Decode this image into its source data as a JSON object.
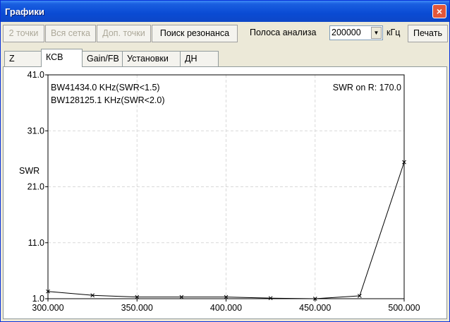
{
  "window": {
    "title": "Графики",
    "close_label": "×"
  },
  "toolbar": {
    "btn_2points": "2 точки",
    "btn_allgrid": "Вся сетка",
    "btn_extra": "Доп. точки",
    "btn_resonance": "Поиск резонанса",
    "bandwidth_label": "Полоса анализа",
    "bandwidth_value": "200000",
    "unit_label": "кГц",
    "print_label": "Печать"
  },
  "tabs": [
    {
      "label": "Z"
    },
    {
      "label": "КСВ"
    },
    {
      "label": "Gain/FB"
    },
    {
      "label": "Установки"
    },
    {
      "label": "ДН"
    }
  ],
  "chart_data": {
    "type": "line",
    "ylabel": "SWR",
    "xlabel": "",
    "xlim": [
      300,
      500
    ],
    "ylim": [
      1,
      41
    ],
    "x_ticks": [
      "300.000",
      "350.000",
      "400.000",
      "450.000",
      "500.000"
    ],
    "y_ticks": [
      "1.0",
      "11.0",
      "21.0",
      "31.0",
      "41.0"
    ],
    "annotations": [
      "BW41434.0 KHz(SWR<1.5)",
      "BW128125.1 KHz(SWR<2.0)"
    ],
    "note": "SWR on R: 170.0",
    "series": [
      {
        "x": [
          300,
          325,
          350,
          375,
          400,
          425,
          450,
          475,
          500
        ],
        "y": [
          2.3,
          1.6,
          1.3,
          1.3,
          1.3,
          1.1,
          1.0,
          1.5,
          25.4
        ]
      }
    ],
    "grid": true,
    "line_color": "#000000"
  }
}
